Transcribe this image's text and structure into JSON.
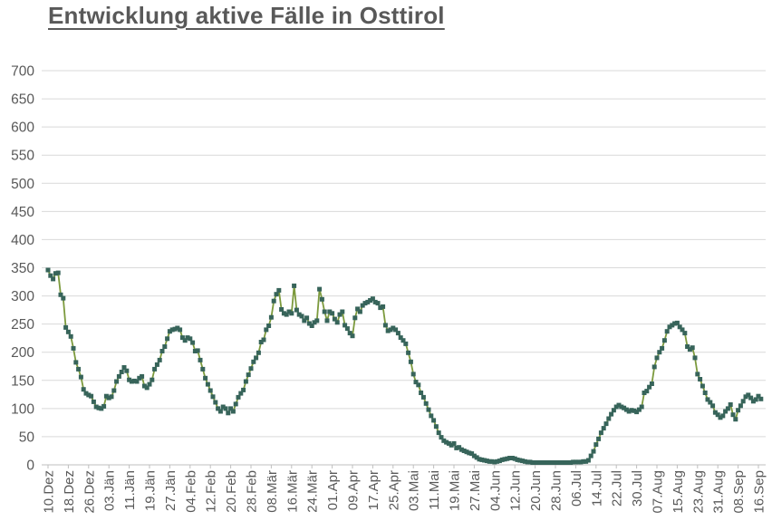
{
  "page": {
    "title": "Entwicklung aktive Fälle in Osttirol"
  },
  "chart_data": {
    "type": "line",
    "title": "Entwicklung aktive Fälle in Osttirol",
    "legend": "none",
    "grid": "horizontal",
    "ylim": [
      0,
      700
    ],
    "ytick_step": 50,
    "y_tick_labels": [
      "0",
      "50",
      "100",
      "150",
      "200",
      "250",
      "300",
      "350",
      "400",
      "450",
      "500",
      "550",
      "600",
      "650",
      "700"
    ],
    "x_tick_interval_days": 8,
    "x_tick_labels": [
      "10.Dez",
      "18.Dez",
      "26.Dez",
      "03.Jän",
      "11.Jän",
      "19.Jän",
      "27.Jän",
      "04.Feb",
      "12.Feb",
      "20.Feb",
      "28.Feb",
      "08.Mär",
      "16.Mär",
      "24.Mär",
      "01.Apr",
      "09.Apr",
      "17.Apr",
      "25.Apr",
      "03.Mai",
      "11.Mai",
      "19.Mai",
      "27.Mai",
      "04.Jun",
      "12.Jun",
      "20.Jun",
      "28.Jun",
      "06.Jul",
      "14.Jul",
      "22.Jul",
      "30.Jul",
      "07.Aug",
      "15.Aug",
      "23.Aug",
      "31.Aug",
      "08.Sep",
      "16.Sep"
    ],
    "series": [
      {
        "name": "aktive Fälle",
        "values": [
          346,
          336,
          330,
          340,
          341,
          302,
          296,
          244,
          236,
          228,
          207,
          182,
          170,
          156,
          134,
          127,
          124,
          122,
          112,
          103,
          101,
          100,
          104,
          122,
          119,
          121,
          132,
          148,
          157,
          165,
          173,
          167,
          151,
          148,
          149,
          148,
          154,
          157,
          140,
          137,
          143,
          151,
          170,
          178,
          186,
          202,
          210,
          224,
          237,
          240,
          241,
          243,
          240,
          226,
          221,
          226,
          224,
          217,
          202,
          203,
          186,
          170,
          154,
          143,
          132,
          121,
          111,
          100,
          95,
          103,
          100,
          92,
          100,
          95,
          108,
          120,
          127,
          133,
          148,
          160,
          171,
          183,
          190,
          199,
          218,
          222,
          240,
          247,
          262,
          291,
          303,
          310,
          276,
          269,
          267,
          272,
          269,
          318,
          275,
          267,
          264,
          256,
          261,
          251,
          247,
          253,
          256,
          312,
          294,
          272,
          256,
          272,
          269,
          259,
          253,
          267,
          272,
          248,
          242,
          234,
          229,
          261,
          277,
          272,
          283,
          287,
          289,
          292,
          295,
          289,
          287,
          279,
          281,
          248,
          238,
          240,
          243,
          240,
          234,
          226,
          221,
          215,
          199,
          183,
          161,
          147,
          142,
          128,
          120,
          109,
          98,
          87,
          79,
          68,
          57,
          49,
          43,
          40,
          38,
          35,
          38,
          30,
          31,
          27,
          25,
          23,
          21,
          20,
          16,
          13,
          10,
          9,
          8,
          7,
          6,
          6,
          5,
          6,
          7,
          9,
          10,
          11,
          12,
          12,
          11,
          9,
          8,
          7,
          6,
          5,
          5,
          4,
          4,
          4,
          4,
          4,
          4,
          4,
          4,
          4,
          4,
          4,
          4,
          4,
          4,
          4,
          4,
          5,
          5,
          5,
          5,
          6,
          6,
          8,
          16,
          24,
          36,
          46,
          57,
          65,
          73,
          82,
          90,
          97,
          103,
          106,
          103,
          101,
          98,
          95,
          97,
          96,
          94,
          98,
          103,
          128,
          131,
          138,
          144,
          174,
          190,
          200,
          207,
          221,
          237,
          245,
          248,
          251,
          252,
          245,
          240,
          234,
          210,
          205,
          208,
          190,
          161,
          152,
          140,
          128,
          116,
          111,
          105,
          93,
          89,
          84,
          87,
          95,
          100,
          107,
          89,
          81,
          97,
          105,
          113,
          121,
          124,
          119,
          113,
          116,
          122,
          117
        ]
      }
    ],
    "colors": {
      "line": "#7C9A3D",
      "marker": "#37645A",
      "grid": "#D9D9D9",
      "axis": "#BFBFBF",
      "text": "#595959",
      "title": "#595959"
    }
  }
}
